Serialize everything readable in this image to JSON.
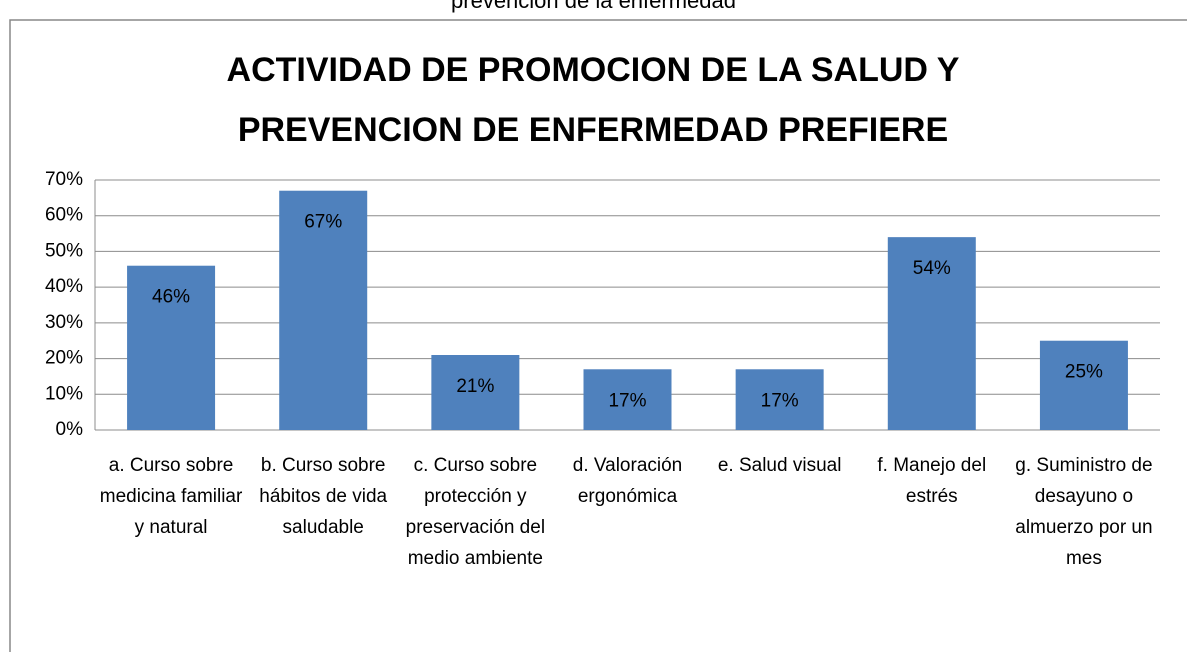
{
  "chart_data": {
    "type": "bar",
    "caption": "prevención de la enfermedad",
    "title": "ACTIVIDAD DE PROMOCION DE LA SALUD Y PREVENCION DE ENFERMEDAD PREFIERE",
    "categories": [
      "a. Curso sobre medicina familiar y natural",
      "b. Curso sobre hábitos de vida saludable",
      "c. Curso sobre protección y preservación del medio ambiente",
      "d. Valoración ergonómica",
      "e. Salud visual",
      "f. Manejo del estrés",
      "g. Suministro de desayuno o almuerzo por un mes"
    ],
    "values": [
      46,
      67,
      21,
      17,
      17,
      54,
      25
    ],
    "value_labels": [
      "46%",
      "67%",
      "21%",
      "17%",
      "17%",
      "54%",
      "25%"
    ],
    "color": "#4f81bd",
    "ylim": [
      0,
      70
    ],
    "yticks": [
      {
        "value": 0,
        "label": "0%"
      },
      {
        "value": 10,
        "label": "10%"
      },
      {
        "value": 20,
        "label": "20%"
      },
      {
        "value": 30,
        "label": "30%"
      },
      {
        "value": 40,
        "label": "40%"
      },
      {
        "value": 50,
        "label": "50%"
      },
      {
        "value": 60,
        "label": "60%"
      },
      {
        "value": 70,
        "label": "70%"
      }
    ],
    "grid": true
  }
}
